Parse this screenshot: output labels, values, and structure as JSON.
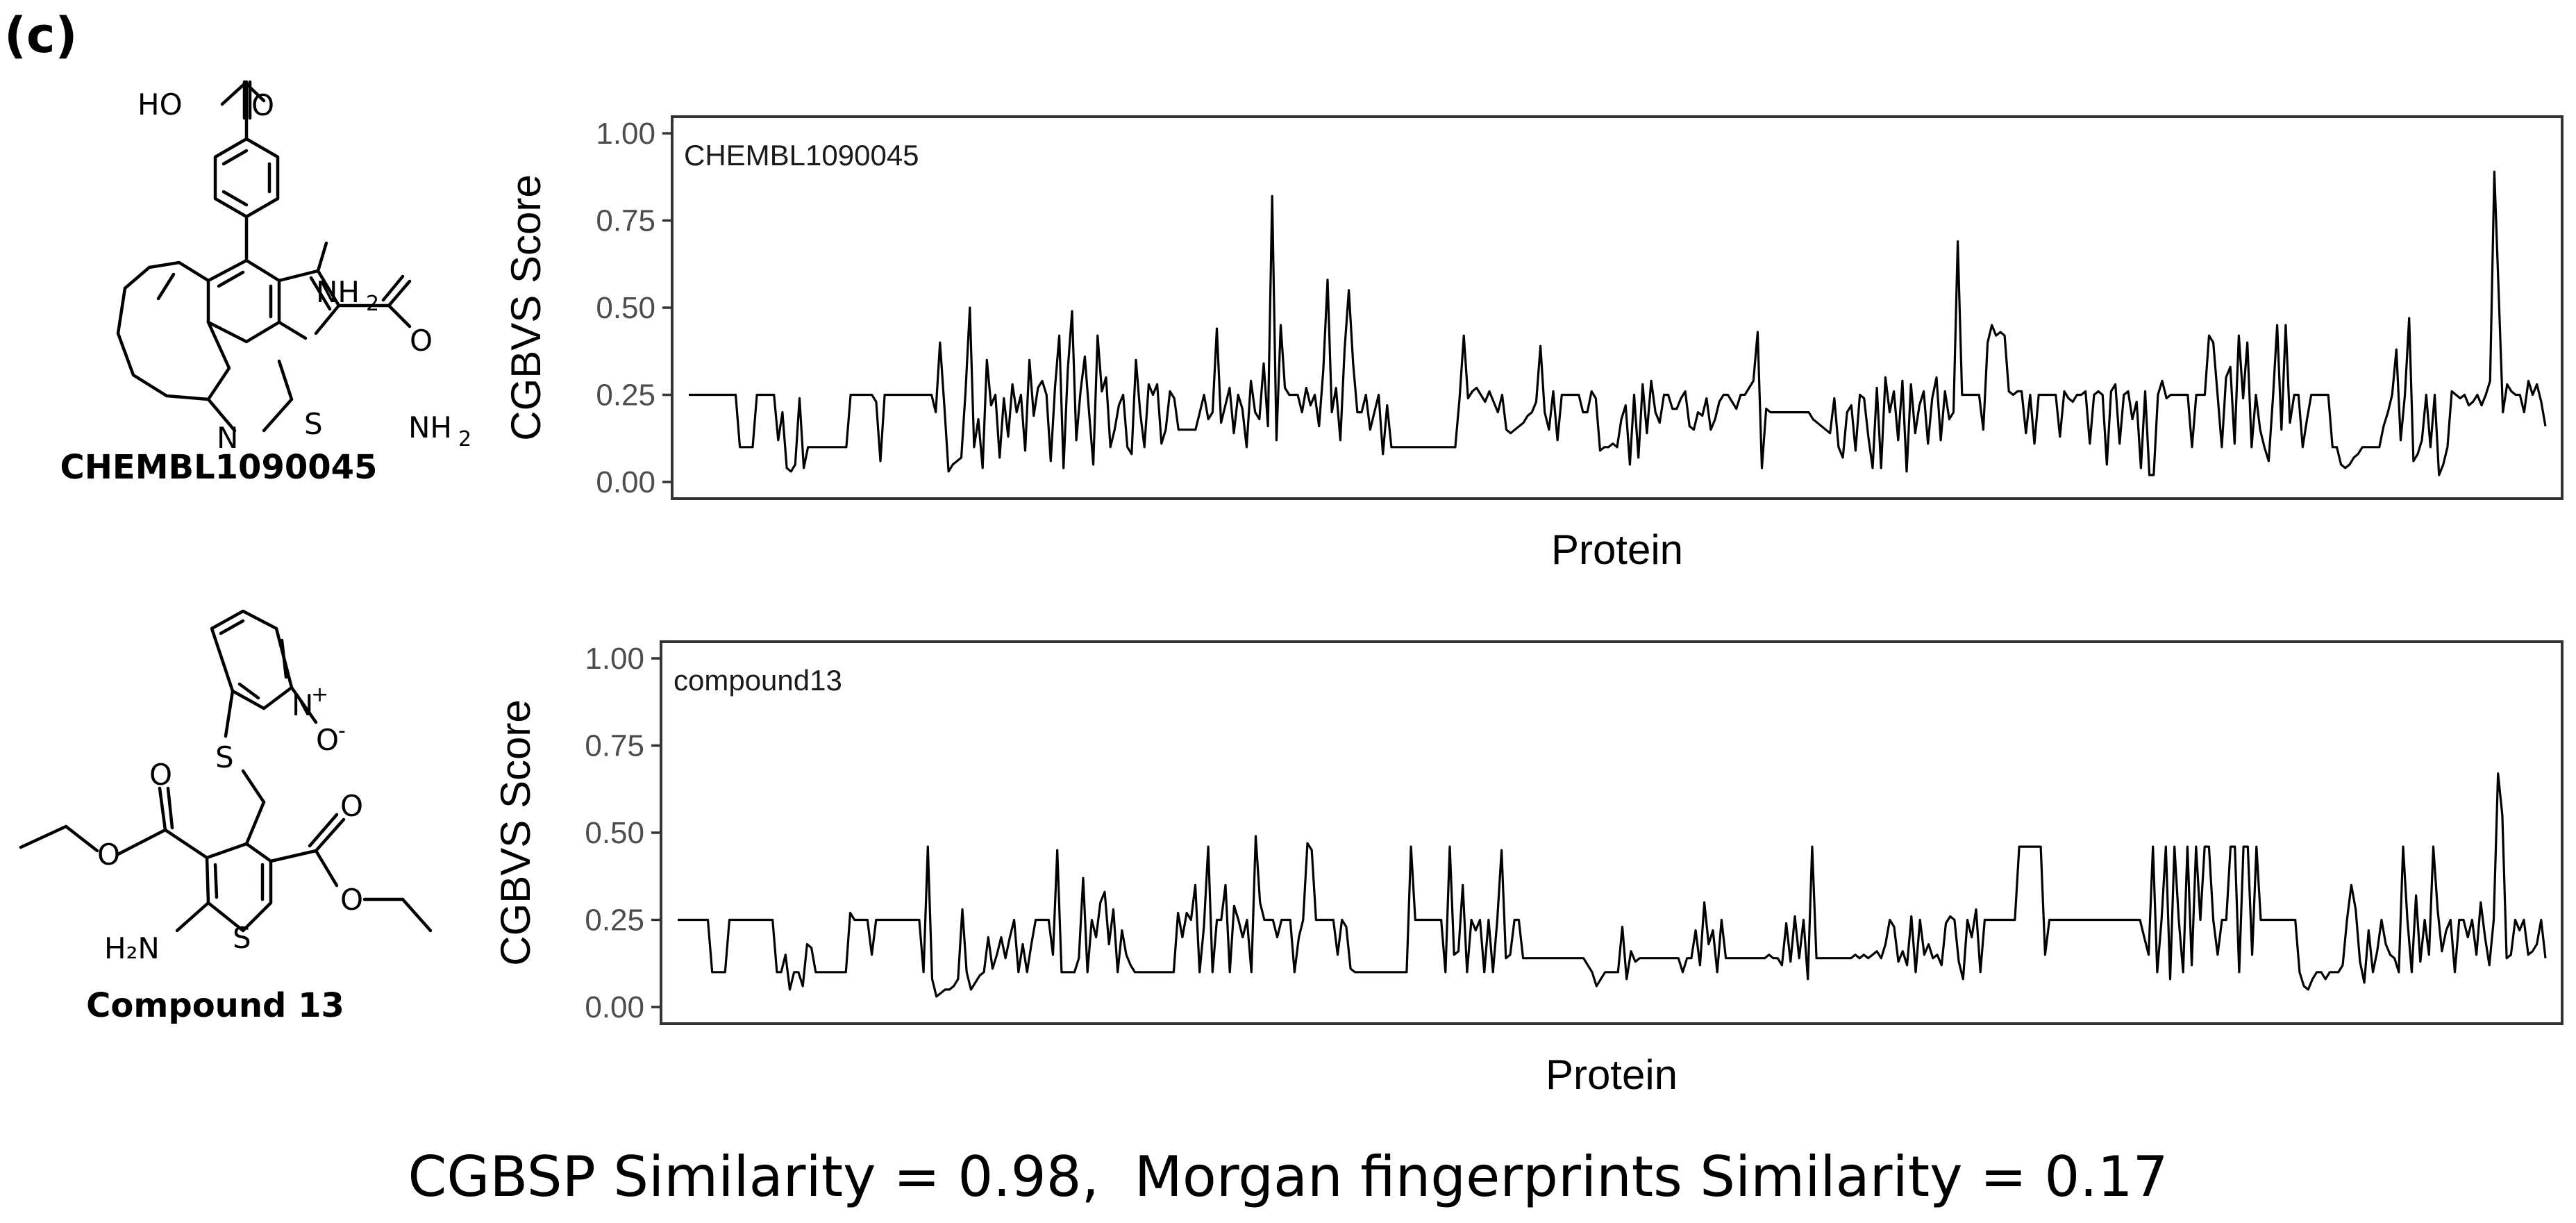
{
  "panel_label": "(c)",
  "molecules": [
    {
      "name": "CHEMBL1090045",
      "atom_labels": {
        "cooh": "HO",
        "o_carbonyl": "O",
        "nh2_a": "NH",
        "nh2_a_sub": "2",
        "o_amide": "O",
        "nh2_b": "NH",
        "nh2_b_sub": "2",
        "n_ring": "N",
        "s_ring": "S"
      }
    },
    {
      "name": "Compound 13",
      "atom_labels": {
        "n_plus": "N",
        "plus": "+",
        "o_minus": "O",
        "minus": "-",
        "s_link": "S",
        "o1": "O",
        "o2": "O",
        "o3": "O",
        "o4": "O",
        "h2n": "H₂N",
        "s_ring": "S"
      }
    }
  ],
  "chart_data": [
    {
      "type": "line",
      "annotation": "CHEMBL1090045",
      "xlabel": "Protein",
      "ylabel": "CGBVS Score",
      "ylim": [
        0,
        1
      ],
      "yticks": [
        "0.00",
        "0.25",
        "0.50",
        "0.75",
        "1.00"
      ],
      "x_ticks": "none",
      "grid": false,
      "values": [
        0.25,
        0.25,
        0.25,
        0.25,
        0.25,
        0.25,
        0.25,
        0.25,
        0.25,
        0.25,
        0.25,
        0.25,
        0.1,
        0.1,
        0.1,
        0.1,
        0.25,
        0.25,
        0.25,
        0.25,
        0.25,
        0.12,
        0.2,
        0.04,
        0.03,
        0.05,
        0.24,
        0.04,
        0.1,
        0.1,
        0.1,
        0.1,
        0.1,
        0.1,
        0.1,
        0.1,
        0.1,
        0.1,
        0.25,
        0.25,
        0.25,
        0.25,
        0.25,
        0.25,
        0.23,
        0.06,
        0.25,
        0.25,
        0.25,
        0.25,
        0.25,
        0.25,
        0.25,
        0.25,
        0.25,
        0.25,
        0.25,
        0.25,
        0.2,
        0.4,
        0.22,
        0.03,
        0.05,
        0.06,
        0.07,
        0.26,
        0.5,
        0.1,
        0.18,
        0.04,
        0.35,
        0.22,
        0.25,
        0.07,
        0.24,
        0.13,
        0.28,
        0.2,
        0.25,
        0.09,
        0.35,
        0.19,
        0.27,
        0.29,
        0.25,
        0.06,
        0.27,
        0.42,
        0.04,
        0.32,
        0.49,
        0.12,
        0.26,
        0.36,
        0.2,
        0.05,
        0.42,
        0.26,
        0.3,
        0.1,
        0.15,
        0.22,
        0.25,
        0.1,
        0.08,
        0.35,
        0.2,
        0.1,
        0.28,
        0.25,
        0.28,
        0.11,
        0.15,
        0.26,
        0.24,
        0.15,
        0.15,
        0.15,
        0.15,
        0.15,
        0.2,
        0.25,
        0.18,
        0.2,
        0.44,
        0.17,
        0.22,
        0.27,
        0.14,
        0.25,
        0.21,
        0.1,
        0.29,
        0.2,
        0.18,
        0.34,
        0.16,
        0.82,
        0.12,
        0.45,
        0.27,
        0.25,
        0.25,
        0.25,
        0.2,
        0.27,
        0.22,
        0.25,
        0.16,
        0.32,
        0.58,
        0.2,
        0.27,
        0.12,
        0.38,
        0.55,
        0.34,
        0.2,
        0.2,
        0.25,
        0.15,
        0.2,
        0.25,
        0.08,
        0.22,
        0.1,
        0.1,
        0.1,
        0.1,
        0.1,
        0.1,
        0.1,
        0.1,
        0.1,
        0.1,
        0.1,
        0.1,
        0.1,
        0.1,
        0.1,
        0.1,
        0.24,
        0.42,
        0.24,
        0.26,
        0.27,
        0.25,
        0.23,
        0.26,
        0.23,
        0.2,
        0.25,
        0.15,
        0.14,
        0.15,
        0.16,
        0.17,
        0.19,
        0.2,
        0.23,
        0.39,
        0.2,
        0.15,
        0.26,
        0.12,
        0.25,
        0.25,
        0.25,
        0.25,
        0.25,
        0.2,
        0.2,
        0.26,
        0.24,
        0.09,
        0.1,
        0.1,
        0.11,
        0.1,
        0.18,
        0.22,
        0.05,
        0.25,
        0.07,
        0.28,
        0.14,
        0.29,
        0.2,
        0.17,
        0.25,
        0.25,
        0.21,
        0.21,
        0.24,
        0.26,
        0.16,
        0.15,
        0.2,
        0.19,
        0.24,
        0.15,
        0.18,
        0.23,
        0.25,
        0.25,
        0.23,
        0.21,
        0.25,
        0.25,
        0.27,
        0.29,
        0.43,
        0.04,
        0.21,
        0.2,
        0.2,
        0.2,
        0.2,
        0.2,
        0.2,
        0.2,
        0.2,
        0.2,
        0.2,
        0.18,
        0.17,
        0.16,
        0.15,
        0.14,
        0.24,
        0.1,
        0.07,
        0.2,
        0.22,
        0.09,
        0.25,
        0.24,
        0.13,
        0.04,
        0.27,
        0.04,
        0.3,
        0.2,
        0.26,
        0.12,
        0.29,
        0.03,
        0.28,
        0.14,
        0.22,
        0.26,
        0.11,
        0.24,
        0.3,
        0.12,
        0.26,
        0.18,
        0.2,
        0.69,
        0.25,
        0.25,
        0.25,
        0.25,
        0.25,
        0.15,
        0.4,
        0.45,
        0.42,
        0.43,
        0.42,
        0.26,
        0.25,
        0.26,
        0.26,
        0.14,
        0.25,
        0.11,
        0.25,
        0.25,
        0.25,
        0.25,
        0.25,
        0.13,
        0.26,
        0.24,
        0.23,
        0.25,
        0.25,
        0.26,
        0.11,
        0.25,
        0.26,
        0.25,
        0.05,
        0.26,
        0.28,
        0.11,
        0.25,
        0.26,
        0.18,
        0.23,
        0.04,
        0.26,
        0.02,
        0.02,
        0.25,
        0.29,
        0.24,
        0.25,
        0.25,
        0.25,
        0.25,
        0.25,
        0.1,
        0.25,
        0.25,
        0.25,
        0.42,
        0.4,
        0.25,
        0.1,
        0.3,
        0.33,
        0.11,
        0.42,
        0.24,
        0.4,
        0.1,
        0.25,
        0.15,
        0.1,
        0.06,
        0.24,
        0.45,
        0.15,
        0.45,
        0.17,
        0.25,
        0.25,
        0.1,
        0.18,
        0.25,
        0.25,
        0.25,
        0.25,
        0.25,
        0.1,
        0.1,
        0.05,
        0.04,
        0.05,
        0.07,
        0.08,
        0.1,
        0.1,
        0.1,
        0.1,
        0.1,
        0.16,
        0.2,
        0.25,
        0.38,
        0.12,
        0.25,
        0.47,
        0.06,
        0.08,
        0.12,
        0.25,
        0.1,
        0.25,
        0.02,
        0.05,
        0.1,
        0.26,
        0.25,
        0.24,
        0.25,
        0.22,
        0.23,
        0.25,
        0.22,
        0.25,
        0.29,
        0.89,
        0.55,
        0.2,
        0.28,
        0.26,
        0.25,
        0.25,
        0.2,
        0.29,
        0.25,
        0.28,
        0.23,
        0.16
      ]
    },
    {
      "type": "line",
      "annotation": "compound13",
      "xlabel": "Protein",
      "ylabel": "CGBVS Score",
      "ylim": [
        0,
        1
      ],
      "yticks": [
        "0.00",
        "0.25",
        "0.50",
        "0.75",
        "1.00"
      ],
      "x_ticks": "none",
      "grid": false,
      "values": [
        0.25,
        0.25,
        0.25,
        0.25,
        0.25,
        0.25,
        0.25,
        0.25,
        0.1,
        0.1,
        0.1,
        0.1,
        0.25,
        0.25,
        0.25,
        0.25,
        0.25,
        0.25,
        0.25,
        0.25,
        0.25,
        0.25,
        0.25,
        0.1,
        0.1,
        0.15,
        0.05,
        0.1,
        0.1,
        0.06,
        0.18,
        0.17,
        0.1,
        0.1,
        0.1,
        0.1,
        0.1,
        0.1,
        0.1,
        0.1,
        0.27,
        0.25,
        0.25,
        0.25,
        0.25,
        0.15,
        0.25,
        0.25,
        0.25,
        0.25,
        0.25,
        0.25,
        0.25,
        0.25,
        0.25,
        0.25,
        0.25,
        0.1,
        0.46,
        0.08,
        0.03,
        0.04,
        0.05,
        0.05,
        0.06,
        0.08,
        0.28,
        0.1,
        0.05,
        0.07,
        0.09,
        0.1,
        0.2,
        0.11,
        0.15,
        0.2,
        0.14,
        0.2,
        0.25,
        0.1,
        0.18,
        0.1,
        0.18,
        0.25,
        0.25,
        0.25,
        0.25,
        0.15,
        0.45,
        0.1,
        0.1,
        0.1,
        0.1,
        0.14,
        0.37,
        0.1,
        0.25,
        0.2,
        0.3,
        0.33,
        0.18,
        0.28,
        0.1,
        0.22,
        0.15,
        0.12,
        0.1,
        0.1,
        0.1,
        0.1,
        0.1,
        0.1,
        0.1,
        0.1,
        0.1,
        0.1,
        0.27,
        0.2,
        0.27,
        0.25,
        0.35,
        0.1,
        0.23,
        0.46,
        0.1,
        0.25,
        0.25,
        0.35,
        0.1,
        0.29,
        0.25,
        0.2,
        0.25,
        0.1,
        0.49,
        0.3,
        0.25,
        0.25,
        0.25,
        0.2,
        0.25,
        0.25,
        0.25,
        0.1,
        0.2,
        0.25,
        0.47,
        0.45,
        0.25,
        0.25,
        0.25,
        0.25,
        0.25,
        0.15,
        0.25,
        0.23,
        0.11,
        0.1,
        0.1,
        0.1,
        0.1,
        0.1,
        0.1,
        0.1,
        0.1,
        0.1,
        0.1,
        0.1,
        0.1,
        0.1,
        0.46,
        0.25,
        0.25,
        0.25,
        0.25,
        0.25,
        0.25,
        0.25,
        0.1,
        0.46,
        0.15,
        0.16,
        0.35,
        0.1,
        0.25,
        0.22,
        0.25,
        0.1,
        0.25,
        0.1,
        0.25,
        0.45,
        0.14,
        0.15,
        0.25,
        0.25,
        0.14,
        0.14,
        0.14,
        0.14,
        0.14,
        0.14,
        0.14,
        0.14,
        0.14,
        0.14,
        0.14,
        0.14,
        0.14,
        0.14,
        0.14,
        0.12,
        0.1,
        0.06,
        0.08,
        0.1,
        0.1,
        0.1,
        0.1,
        0.23,
        0.08,
        0.16,
        0.13,
        0.14,
        0.14,
        0.14,
        0.14,
        0.14,
        0.14,
        0.14,
        0.14,
        0.14,
        0.14,
        0.1,
        0.14,
        0.14,
        0.22,
        0.12,
        0.3,
        0.18,
        0.22,
        0.1,
        0.25,
        0.14,
        0.14,
        0.14,
        0.14,
        0.14,
        0.14,
        0.14,
        0.14,
        0.14,
        0.14,
        0.15,
        0.14,
        0.14,
        0.12,
        0.24,
        0.13,
        0.26,
        0.14,
        0.25,
        0.08,
        0.46,
        0.14,
        0.14,
        0.14,
        0.14,
        0.14,
        0.14,
        0.14,
        0.14,
        0.14,
        0.15,
        0.14,
        0.15,
        0.14,
        0.15,
        0.16,
        0.14,
        0.18,
        0.25,
        0.23,
        0.13,
        0.16,
        0.12,
        0.26,
        0.1,
        0.25,
        0.15,
        0.18,
        0.14,
        0.15,
        0.12,
        0.24,
        0.26,
        0.25,
        0.13,
        0.08,
        0.25,
        0.2,
        0.28,
        0.1,
        0.25,
        0.25,
        0.25,
        0.25,
        0.25,
        0.25,
        0.25,
        0.25,
        0.46,
        0.46,
        0.46,
        0.46,
        0.46,
        0.46,
        0.15,
        0.25,
        0.25,
        0.25,
        0.25,
        0.25,
        0.25,
        0.25,
        0.25,
        0.25,
        0.25,
        0.25,
        0.25,
        0.25,
        0.25,
        0.25,
        0.25,
        0.25,
        0.25,
        0.25,
        0.25,
        0.25,
        0.25,
        0.2,
        0.15,
        0.46,
        0.1,
        0.25,
        0.46,
        0.08,
        0.46,
        0.25,
        0.1,
        0.46,
        0.12,
        0.46,
        0.25,
        0.46,
        0.46,
        0.25,
        0.15,
        0.25,
        0.25,
        0.46,
        0.46,
        0.1,
        0.46,
        0.46,
        0.15,
        0.46,
        0.25,
        0.25,
        0.25,
        0.25,
        0.25,
        0.25,
        0.25,
        0.25,
        0.25,
        0.1,
        0.06,
        0.05,
        0.08,
        0.1,
        0.1,
        0.08,
        0.1,
        0.1,
        0.1,
        0.12,
        0.25,
        0.35,
        0.28,
        0.13,
        0.07,
        0.22,
        0.1,
        0.16,
        0.25,
        0.18,
        0.15,
        0.14,
        0.1,
        0.46,
        0.25,
        0.1,
        0.32,
        0.13,
        0.25,
        0.15,
        0.46,
        0.28,
        0.16,
        0.22,
        0.25,
        0.1,
        0.25,
        0.25,
        0.2,
        0.25,
        0.15,
        0.3,
        0.2,
        0.12,
        0.25,
        0.67,
        0.55,
        0.14,
        0.15,
        0.25,
        0.22,
        0.25,
        0.15,
        0.16,
        0.18,
        0.25,
        0.14
      ]
    }
  ],
  "footer": {
    "part1": "CGBSP Similarity = 0.98,",
    "part2": "Morgan fingerprints Similarity = 0.17"
  }
}
